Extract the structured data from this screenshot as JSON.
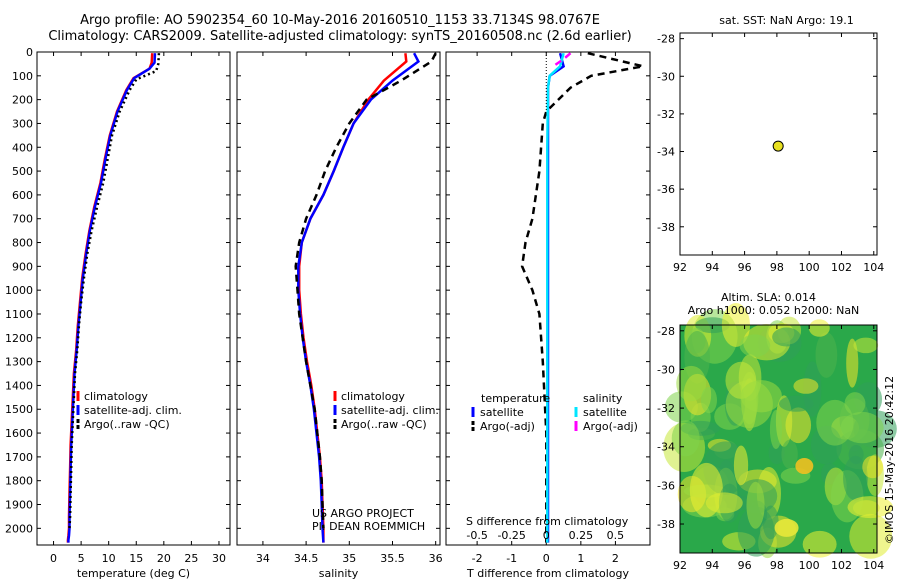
{
  "header": {
    "line1": "Argo profile: AO 5902354_60 10-May-2016 20160510_1153 33.7134S 98.0767E",
    "line2": "Climatology: CARS2009. Satellite-adjusted climatology: synTS_20160508.nc (2.6d earlier)"
  },
  "side_stamp": "©IMOS 15-May-2016 20:42:12",
  "colors": {
    "climatology": "#ff0000",
    "satellite_adj": "#0000ff",
    "argo": "#000000",
    "satellite_s": "#00e5ff",
    "argo_adj_s": "#ff00ff",
    "map_float": "#e8e020",
    "sla_green": "#2aa84a",
    "sla_yellow": "#f0f020"
  },
  "chart_data": [
    {
      "type": "line",
      "name": "temperature-panel",
      "xlabel": "temperature (deg C)",
      "ylabel": "",
      "xlim": [
        -3,
        32
      ],
      "ylim": [
        2070,
        0
      ],
      "xticks": [
        0,
        5,
        10,
        15,
        20,
        25,
        30
      ],
      "yticks": [
        0,
        100,
        200,
        300,
        400,
        500,
        600,
        700,
        800,
        900,
        1000,
        1100,
        1200,
        1300,
        1400,
        1500,
        1600,
        1700,
        1800,
        1900,
        2000
      ],
      "legend": [
        "climatology",
        "satellite-adj. clim.",
        "Argo(..raw -QC)"
      ],
      "series": [
        {
          "name": "climatology",
          "color": "#ff0000",
          "x": [
            17.9,
            17.8,
            17.4,
            14.5,
            13.2,
            11.5,
            10.2,
            9.3,
            8.5,
            7.4,
            6.5,
            5.8,
            5.2,
            4.8,
            4.4,
            4.1,
            3.7,
            3.5,
            3.3,
            3.1,
            3.0,
            2.9,
            2.8,
            2.8,
            2.7,
            2.6,
            2.6
          ],
          "y": [
            5,
            45,
            70,
            110,
            160,
            250,
            350,
            450,
            550,
            650,
            750,
            850,
            950,
            1050,
            1150,
            1250,
            1350,
            1450,
            1550,
            1650,
            1750,
            1850,
            1950,
            2000,
            2030,
            2050,
            2060
          ]
        },
        {
          "name": "satellite-adj. clim.",
          "color": "#0000ff",
          "x": [
            18.4,
            18.3,
            17.4,
            14.6,
            13.3,
            11.6,
            10.3,
            9.4,
            8.6,
            7.5,
            6.6,
            5.9,
            5.3,
            4.9,
            4.5,
            4.2,
            3.8,
            3.6,
            3.4,
            3.2,
            3.1,
            3.0,
            2.9,
            2.9,
            2.8,
            2.7,
            2.7
          ],
          "y": [
            5,
            45,
            70,
            110,
            160,
            250,
            350,
            450,
            550,
            650,
            750,
            850,
            950,
            1050,
            1150,
            1250,
            1350,
            1450,
            1550,
            1650,
            1750,
            1850,
            1950,
            2000,
            2030,
            2050,
            2060
          ]
        },
        {
          "name": "Argo(..raw -QC)",
          "color": "#000000",
          "x": [
            19.1,
            19.0,
            18.6,
            15.0,
            13.8,
            12.0,
            10.6,
            9.8,
            9.0,
            7.9,
            6.9,
            6.1,
            5.5,
            5.0,
            4.6,
            4.3,
            3.9,
            3.7,
            3.5,
            3.3,
            3.2,
            3.1,
            3.0,
            2.9
          ],
          "y": [
            5,
            50,
            80,
            115,
            160,
            250,
            350,
            450,
            550,
            650,
            750,
            850,
            950,
            1050,
            1150,
            1250,
            1350,
            1450,
            1550,
            1650,
            1750,
            1850,
            1950,
            2000
          ]
        }
      ]
    },
    {
      "type": "line",
      "name": "salinity-panel",
      "xlabel": "salinity",
      "xlim": [
        33.7,
        36.05
      ],
      "ylim": [
        2070,
        0
      ],
      "xticks": [
        34,
        34.5,
        35,
        35.5,
        36
      ],
      "legend": [
        "climatology",
        "satellite-adj. clim.",
        "Argo(..raw -QC)"
      ],
      "series": [
        {
          "name": "climatology",
          "color": "#ff0000",
          "x": [
            35.65,
            35.66,
            35.4,
            35.22,
            35.05,
            34.93,
            34.82,
            34.7,
            34.55,
            34.45,
            34.42,
            34.42,
            34.44,
            34.47,
            34.51,
            34.56,
            34.6,
            34.63,
            34.66,
            34.68,
            34.69,
            34.7,
            34.7
          ],
          "y": [
            5,
            40,
            120,
            200,
            300,
            400,
            500,
            600,
            700,
            800,
            900,
            1000,
            1100,
            1200,
            1300,
            1400,
            1500,
            1600,
            1700,
            1800,
            1900,
            2000,
            2060
          ]
        },
        {
          "name": "satellite-adj. clim.",
          "color": "#0000ff",
          "x": [
            35.75,
            35.8,
            35.5,
            35.25,
            35.05,
            34.93,
            34.82,
            34.7,
            34.55,
            34.45,
            34.41,
            34.41,
            34.43,
            34.46,
            34.5,
            34.55,
            34.59,
            34.62,
            34.65,
            34.67,
            34.68,
            34.69,
            34.7
          ],
          "y": [
            5,
            40,
            120,
            200,
            300,
            400,
            500,
            600,
            700,
            800,
            900,
            1000,
            1100,
            1200,
            1300,
            1400,
            1500,
            1600,
            1700,
            1800,
            1900,
            2000,
            2060
          ]
        },
        {
          "name": "Argo(..raw -QC)",
          "color": "#000000",
          "x": [
            36.0,
            35.95,
            35.6,
            35.2,
            35.0,
            34.85,
            34.72,
            34.62,
            34.5,
            34.42,
            34.38,
            34.4,
            34.42,
            34.46,
            34.5,
            34.55,
            34.6,
            34.63,
            34.66,
            34.68,
            34.69,
            34.7
          ],
          "y": [
            5,
            40,
            120,
            200,
            300,
            400,
            500,
            600,
            700,
            800,
            900,
            1000,
            1100,
            1200,
            1300,
            1400,
            1500,
            1600,
            1700,
            1800,
            1900,
            2000
          ]
        }
      ]
    },
    {
      "type": "line",
      "name": "difference-panel",
      "xlabel": "T difference from climatology",
      "x2label": "S difference from climatology",
      "xlim": [
        -2.9,
        3.0
      ],
      "ylim": [
        2070,
        0
      ],
      "xticks": [
        -2,
        -1,
        0,
        1,
        2
      ],
      "x2ticks": [
        "-0.5",
        "-0.25",
        "0",
        "0.25",
        "0.5"
      ],
      "x2ticks_values": [
        -2,
        -1,
        0,
        1,
        2
      ],
      "legend_titles": [
        "temperature",
        "salinity"
      ],
      "legend": [
        "satellite",
        "Argo(-adj)",
        "satellite",
        "Argo(-adj)"
      ],
      "series": [
        {
          "name": "T satellite",
          "color": "#0000ff",
          "x": [
            0.4,
            0.5,
            0.1,
            0.05,
            0.05,
            0.05,
            0.05,
            0.05,
            0.05,
            0.05,
            0.05,
            0.05,
            0.05
          ],
          "y": [
            5,
            60,
            100,
            150,
            300,
            600,
            900,
            1200,
            1300,
            1500,
            1700,
            1900,
            2060
          ]
        },
        {
          "name": "T Argo(-adj)",
          "color": "#000000",
          "x": [
            1.2,
            2.8,
            1.3,
            0.7,
            0.0,
            -0.1,
            -0.2,
            -0.4,
            -0.6,
            -0.7,
            -0.4,
            -0.2,
            -0.1,
            0.0,
            0.0
          ],
          "y": [
            5,
            60,
            100,
            150,
            250,
            300,
            500,
            700,
            800,
            900,
            1000,
            1100,
            1300,
            1600,
            2060
          ]
        },
        {
          "name": "S satellite",
          "color": "#00e5ff",
          "x": [
            0.5,
            0.4,
            0.1,
            0.05,
            0.03,
            0.03,
            0.03,
            0.03,
            0.03
          ],
          "y": [
            5,
            60,
            100,
            150,
            400,
            800,
            1200,
            1600,
            2060
          ]
        },
        {
          "name": "S Argo(-adj)",
          "color": "#ff00ff",
          "x": [
            0.7,
            0.5,
            0.2
          ],
          "y": [
            5,
            30,
            60
          ]
        }
      ]
    },
    {
      "type": "scatter",
      "name": "location-map",
      "title": "sat. SST: NaN Argo: 19.1",
      "xlim": [
        92,
        104.2
      ],
      "ylim": [
        -39.5,
        -27.7
      ],
      "xticks": [
        92,
        94,
        96,
        98,
        100,
        102,
        104
      ],
      "yticks": [
        -28,
        -30,
        -32,
        -34,
        -36,
        -38
      ],
      "points": [
        {
          "x": 98.08,
          "y": -33.71
        }
      ]
    },
    {
      "type": "heatmap",
      "name": "sla-map",
      "title1": "Altim. SLA: 0.014",
      "title2": "Argo h1000: 0.052 h2000: NaN",
      "xlim": [
        92,
        104.2
      ],
      "ylim": [
        -39.5,
        -27.7
      ],
      "xticks": [
        92,
        94,
        96,
        98,
        100,
        102,
        104
      ],
      "yticks": [
        -28,
        -30,
        -32,
        -34,
        -36,
        -38
      ]
    }
  ],
  "project": {
    "line1": "US ARGO PROJECT",
    "line2": "PI: DEAN ROEMMICH"
  }
}
